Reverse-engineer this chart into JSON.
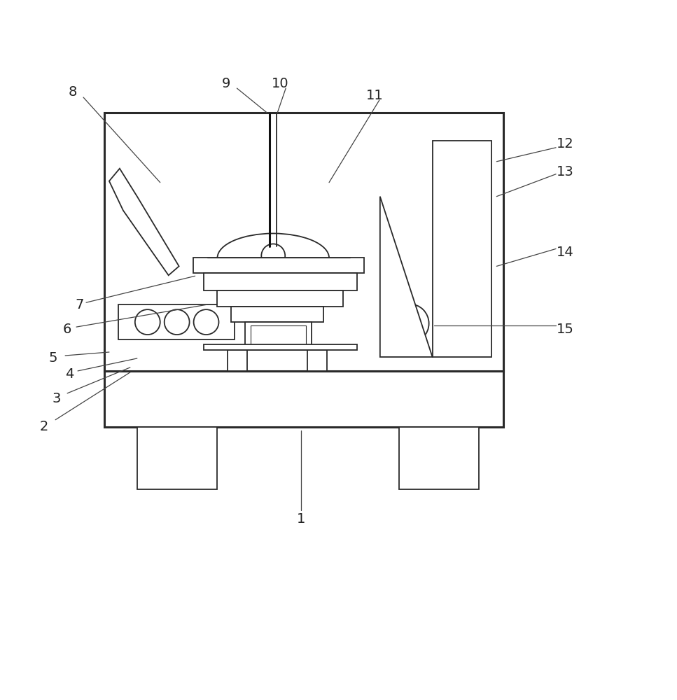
{
  "fig_width": 9.67,
  "fig_height": 10.0,
  "bg_color": "#ffffff",
  "lc": "#2a2a2a",
  "lw": 1.3,
  "tlw": 2.2
}
